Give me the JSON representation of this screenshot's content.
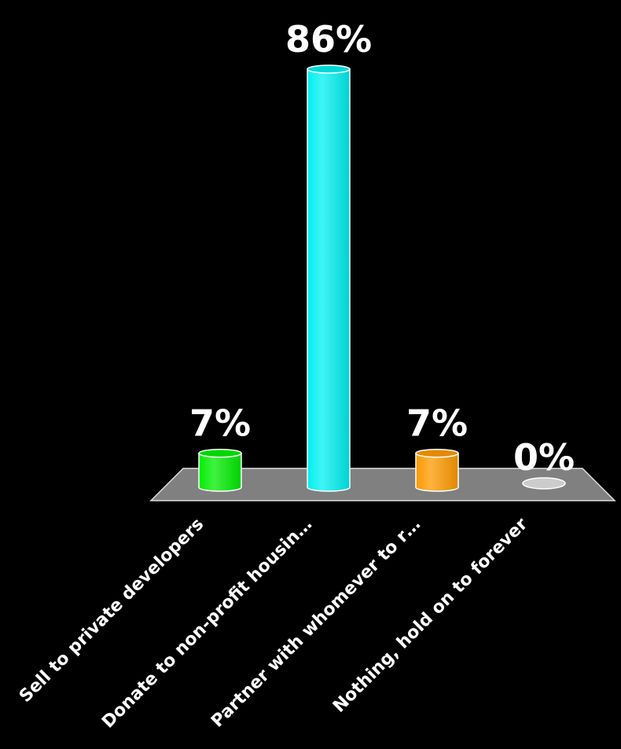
{
  "chart_data": {
    "type": "bar",
    "categories": [
      "Sell to private developers",
      "Donate to non-profit housin…",
      "Partner with whomever to r…",
      "Nothing, hold on to forever"
    ],
    "values": [
      7,
      86,
      7,
      0
    ],
    "data_labels": [
      "7%",
      "86%",
      "7%",
      "0%"
    ],
    "colors": [
      "#00ee00",
      "#00f0f0",
      "#ff9900",
      "#cccccc"
    ],
    "floor_color": "#808080",
    "background": "#000000",
    "title": "",
    "xlabel": "",
    "ylabel": "",
    "ylim": [
      0,
      86
    ],
    "grid": false,
    "legend": "none"
  }
}
